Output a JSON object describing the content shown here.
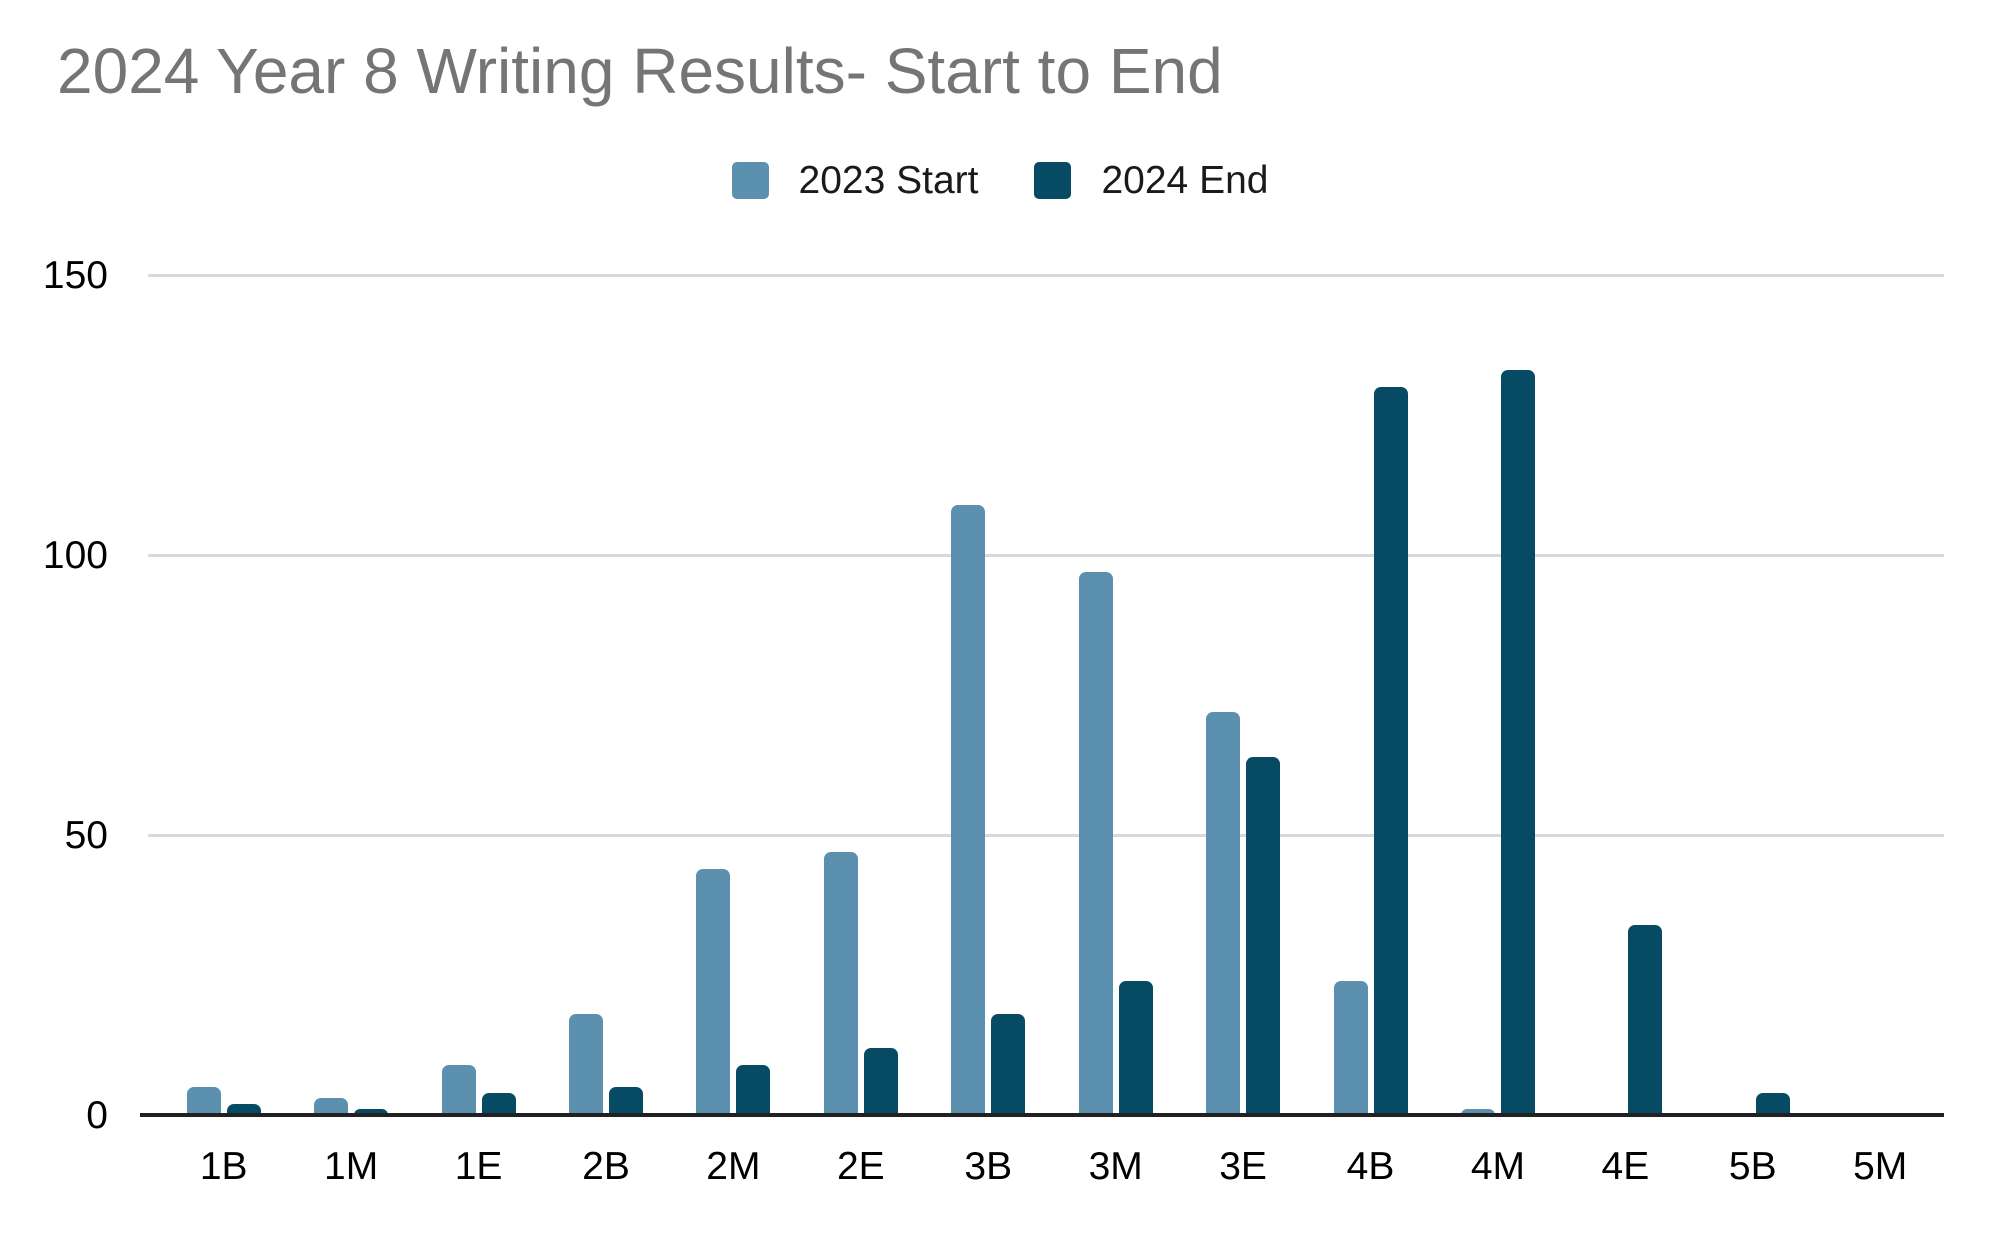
{
  "chart_data": {
    "type": "bar",
    "title": "2024 Year 8 Writing Results- Start to End",
    "categories": [
      "1B",
      "1M",
      "1E",
      "2B",
      "2M",
      "2E",
      "3B",
      "3M",
      "3E",
      "4B",
      "4M",
      "4E",
      "5B",
      "5M"
    ],
    "series": [
      {
        "name": "2023 Start",
        "color": "#5b91af",
        "values": [
          5,
          3,
          9,
          18,
          44,
          47,
          109,
          97,
          72,
          24,
          1,
          0,
          0,
          0
        ]
      },
      {
        "name": "2024 End",
        "color": "#074a63",
        "values": [
          2,
          1,
          4,
          5,
          9,
          12,
          18,
          24,
          64,
          130,
          133,
          34,
          4,
          0
        ]
      }
    ],
    "xlabel": "",
    "ylabel": "",
    "yticks": [
      0,
      50,
      100,
      150
    ],
    "ylim": [
      0,
      150
    ],
    "grid": true,
    "legend_position": "top-center"
  },
  "colors": {
    "background": "#ffffff",
    "title_text": "#757575",
    "legend_text": "#1a1a1a",
    "axis_line": "#212121",
    "gridline": "#d9d9d9",
    "tick_text": "#000000"
  }
}
